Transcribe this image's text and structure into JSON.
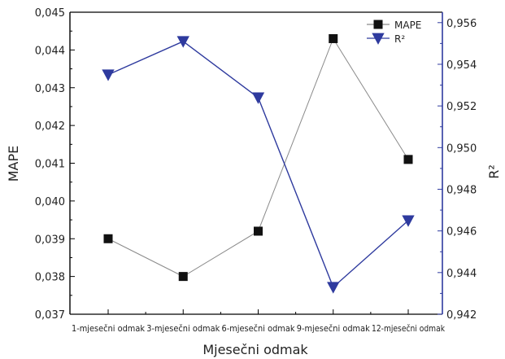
{
  "chart_data": {
    "type": "line",
    "categories": [
      "1-mjesečni odmak",
      "3-mjesečni odmak",
      "6-mjesečni odmak",
      "9-mjesečni odmak",
      "12-mjesečni odmak"
    ],
    "xlabel": "Mjesečni odmak",
    "ylabel_left": "MAPE",
    "ylabel_right": "R²",
    "left_axis": {
      "range": [
        0.037,
        0.045
      ],
      "ticks": [
        "0,037",
        "0,038",
        "0,039",
        "0,040",
        "0,041",
        "0,042",
        "0,043",
        "0,044",
        "0,045"
      ],
      "tick_values": [
        0.037,
        0.038,
        0.039,
        0.04,
        0.041,
        0.042,
        0.043,
        0.044,
        0.045
      ]
    },
    "right_axis": {
      "range": [
        0.942,
        0.9565
      ],
      "ticks": [
        "0,942",
        "0,944",
        "0,946",
        "0,948",
        "0,950",
        "0,952",
        "0,954",
        "0,956"
      ],
      "tick_values": [
        0.942,
        0.944,
        0.946,
        0.948,
        0.95,
        0.952,
        0.954,
        0.956
      ]
    },
    "series": [
      {
        "name": "MAPE",
        "axis": "left",
        "marker": "square",
        "color": "#111111",
        "line_color": "#8a8a8a",
        "values": [
          0.039,
          0.038,
          0.0392,
          0.0443,
          0.0411
        ]
      },
      {
        "name": "R²",
        "axis": "right",
        "marker": "triangle-down",
        "color": "#2e3a9e",
        "line_color": "#2e3a9e",
        "values": [
          0.9535,
          0.9551,
          0.9524,
          0.9433,
          0.9465
        ]
      }
    ],
    "legend_position": "top-right",
    "grid": false,
    "left_axis_color": "#000000",
    "right_axis_color": "#2e3a9e"
  }
}
